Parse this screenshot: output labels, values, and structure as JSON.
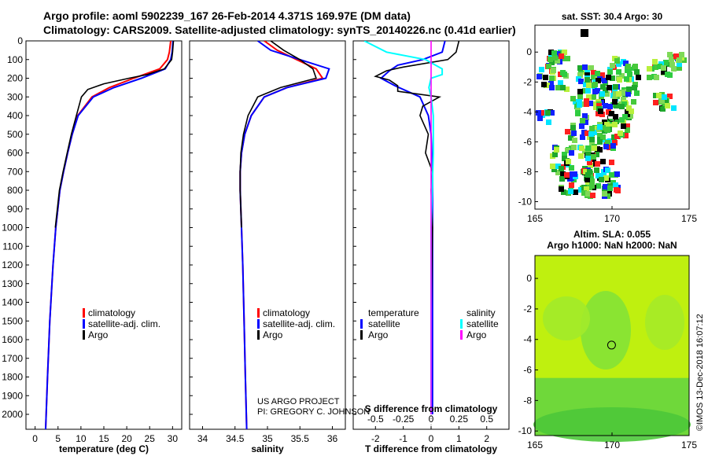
{
  "header": {
    "title_line1": "Argo profile: aoml 5902239_167 26-Feb-2014 4.371S 169.97E (DM data)",
    "title_line2": "Climatology: CARS2009. Satellite-adjusted climatology: synTS_20140226.nc (0.41d earlier)"
  },
  "credits": {
    "project": "US ARGO PROJECT",
    "pi": "PI: GREGORY C. JOHNSON",
    "stamp": "©IMOS 13-Dec-2018 16:07:12"
  },
  "colors": {
    "climatology": "#ff0000",
    "satellite": "#0000ff",
    "argo": "#000000",
    "sal_satellite": "#00ffff",
    "sal_argo": "#ff00ff"
  },
  "chart_data": [
    {
      "type": "line",
      "title": "",
      "xlabel": "temperature (deg C)",
      "ylabel": "",
      "xlim": [
        -2,
        32
      ],
      "ylim": [
        2080,
        0
      ],
      "xticks": [
        0,
        5,
        10,
        15,
        20,
        25,
        30
      ],
      "yticks": [
        0,
        100,
        200,
        300,
        400,
        500,
        600,
        700,
        800,
        900,
        1000,
        1100,
        1200,
        1300,
        1400,
        1500,
        1600,
        1700,
        1800,
        1900,
        2000
      ],
      "legend": [
        "climatology",
        "satellite-adj. clim.",
        "Argo"
      ],
      "series": [
        {
          "name": "climatology",
          "pressure": [
            0,
            60,
            100,
            150,
            200,
            250,
            300,
            400,
            500,
            600,
            700,
            800,
            1000,
            1200,
            1500,
            1800,
            2080
          ],
          "values": [
            29.6,
            29.3,
            28.9,
            27.2,
            21.5,
            16.2,
            12.4,
            9.3,
            8.1,
            7.1,
            6.2,
            5.4,
            4.5,
            3.9,
            3.2,
            2.7,
            2.3
          ]
        },
        {
          "name": "satellite-adj. clim.",
          "pressure": [
            0,
            60,
            100,
            150,
            200,
            250,
            300,
            400,
            500,
            600,
            700,
            800,
            1000,
            1200,
            1500,
            1800,
            2080
          ],
          "values": [
            30.1,
            29.9,
            29.6,
            28.4,
            23.2,
            17.2,
            12.7,
            9.4,
            8.1,
            7.1,
            6.2,
            5.4,
            4.5,
            3.9,
            3.2,
            2.7,
            2.3
          ]
        },
        {
          "name": "Argo",
          "pressure": [
            0,
            60,
            100,
            150,
            180,
            200,
            230,
            260,
            300,
            400,
            500,
            600,
            700,
            800,
            1000
          ],
          "values": [
            30.2,
            30.0,
            29.8,
            28.2,
            24.5,
            20.5,
            15.0,
            11.5,
            10.1,
            9.0,
            7.9,
            7.0,
            6.1,
            5.3,
            4.4
          ]
        }
      ]
    },
    {
      "type": "line",
      "title": "",
      "xlabel": "salinity",
      "ylabel": "",
      "xlim": [
        33.8,
        36.2
      ],
      "ylim": [
        2080,
        0
      ],
      "xticks": [
        34,
        34.5,
        35,
        35.5,
        36
      ],
      "legend": [
        "climatology",
        "satellite-adj. clim.",
        "Argo"
      ],
      "series": [
        {
          "name": "climatology",
          "pressure": [
            0,
            50,
            100,
            150,
            200,
            250,
            300,
            400,
            500,
            600,
            700,
            800,
            1000,
            1200,
            1500,
            1800,
            2080
          ],
          "values": [
            34.95,
            35.15,
            35.45,
            35.75,
            35.85,
            35.3,
            34.95,
            34.75,
            34.65,
            34.6,
            34.58,
            34.58,
            34.6,
            34.62,
            34.64,
            34.66,
            34.68
          ]
        },
        {
          "name": "satellite-adj. clim.",
          "pressure": [
            0,
            50,
            100,
            150,
            200,
            250,
            300,
            400,
            500,
            600,
            700,
            800,
            1000,
            1200,
            1500,
            1800,
            2080
          ],
          "values": [
            34.85,
            35.05,
            35.5,
            35.95,
            35.9,
            35.3,
            34.95,
            34.75,
            34.65,
            34.6,
            34.58,
            34.58,
            34.6,
            34.62,
            34.64,
            34.66,
            34.68
          ]
        },
        {
          "name": "Argo",
          "pressure": [
            0,
            50,
            100,
            150,
            200,
            250,
            300,
            400,
            500,
            600,
            700,
            800,
            1000
          ],
          "values": [
            35.05,
            35.25,
            35.5,
            35.7,
            35.75,
            35.2,
            34.85,
            34.7,
            34.63,
            34.59,
            34.58,
            34.58,
            34.6
          ]
        }
      ]
    },
    {
      "type": "line",
      "title": "",
      "xlabel": "T difference from climatology",
      "xlabel2": "S difference from climatology",
      "ylabel": "",
      "xlim": [
        -2.8,
        2.8
      ],
      "ylim": [
        2080,
        0
      ],
      "xticks": [
        -2,
        -1,
        0,
        1,
        2
      ],
      "xticks2": [
        -0.5,
        -0.25,
        0,
        0.25,
        0.5
      ],
      "x2lim": [
        -0.7,
        0.7
      ],
      "legend_left_header": "temperature",
      "legend_right_header": "salinity",
      "legend": [
        "satellite",
        "Argo",
        "satellite",
        "Argo"
      ],
      "series": [
        {
          "name": "temperature satellite",
          "pressure": [
            0,
            60,
            100,
            130,
            160,
            200,
            240,
            300,
            400,
            500,
            700,
            1000,
            1500,
            2000
          ],
          "values": [
            0.5,
            0.4,
            -0.3,
            -1.2,
            -1.5,
            -1.8,
            -1.3,
            -0.4,
            -0.1,
            0.0,
            0.05,
            0.05,
            0.05,
            0.05
          ]
        },
        {
          "name": "temperature Argo",
          "pressure": [
            0,
            60,
            100,
            140,
            160,
            190,
            210,
            240,
            270,
            300,
            350,
            400,
            500,
            600,
            700,
            800,
            1000,
            1500,
            2000
          ],
          "values": [
            1.0,
            0.9,
            0.6,
            -1.0,
            -1.6,
            -2.0,
            -1.5,
            -1.2,
            -1.2,
            0.3,
            -0.3,
            -0.4,
            -0.1,
            -0.2,
            0.05,
            0.0,
            0.05,
            0.0,
            0.0
          ]
        },
        {
          "name": "salinity satellite",
          "pressure": [
            0,
            60,
            100,
            150,
            180,
            200,
            250,
            300,
            400,
            600,
            800,
            1000,
            1500,
            2000
          ],
          "values": [
            -0.6,
            -0.4,
            -0.05,
            0.1,
            0.1,
            0.0,
            -0.02,
            0.0,
            0.02,
            0.02,
            0.01,
            0.0,
            0.0,
            0.0
          ]
        },
        {
          "name": "salinity Argo",
          "pressure": [
            0,
            100,
            200,
            300,
            500,
            1000,
            2000
          ],
          "values": [
            0,
            0,
            0,
            0,
            0,
            0,
            0
          ]
        }
      ]
    },
    {
      "type": "heatmap",
      "title": "sat. SST: 30.4 Argo: 30",
      "xlim": [
        165,
        175
      ],
      "ylim": [
        -10.5,
        1.8
      ],
      "xticks": [
        165,
        170,
        175
      ],
      "yticks": [
        0,
        -2,
        -4,
        -6,
        -8,
        -10
      ],
      "profile_location": [
        169.97,
        -4.371
      ]
    },
    {
      "type": "heatmap",
      "title": "Altim. SLA: 0.055",
      "subtitle": "Argo h1000: NaN h2000: NaN",
      "xlim": [
        165,
        175
      ],
      "ylim": [
        -10.3,
        1.5
      ],
      "xticks": [
        165,
        170,
        175
      ],
      "yticks": [
        0,
        -2,
        -4,
        -6,
        -8,
        -10
      ],
      "profile_location": [
        169.97,
        -4.371
      ]
    }
  ]
}
